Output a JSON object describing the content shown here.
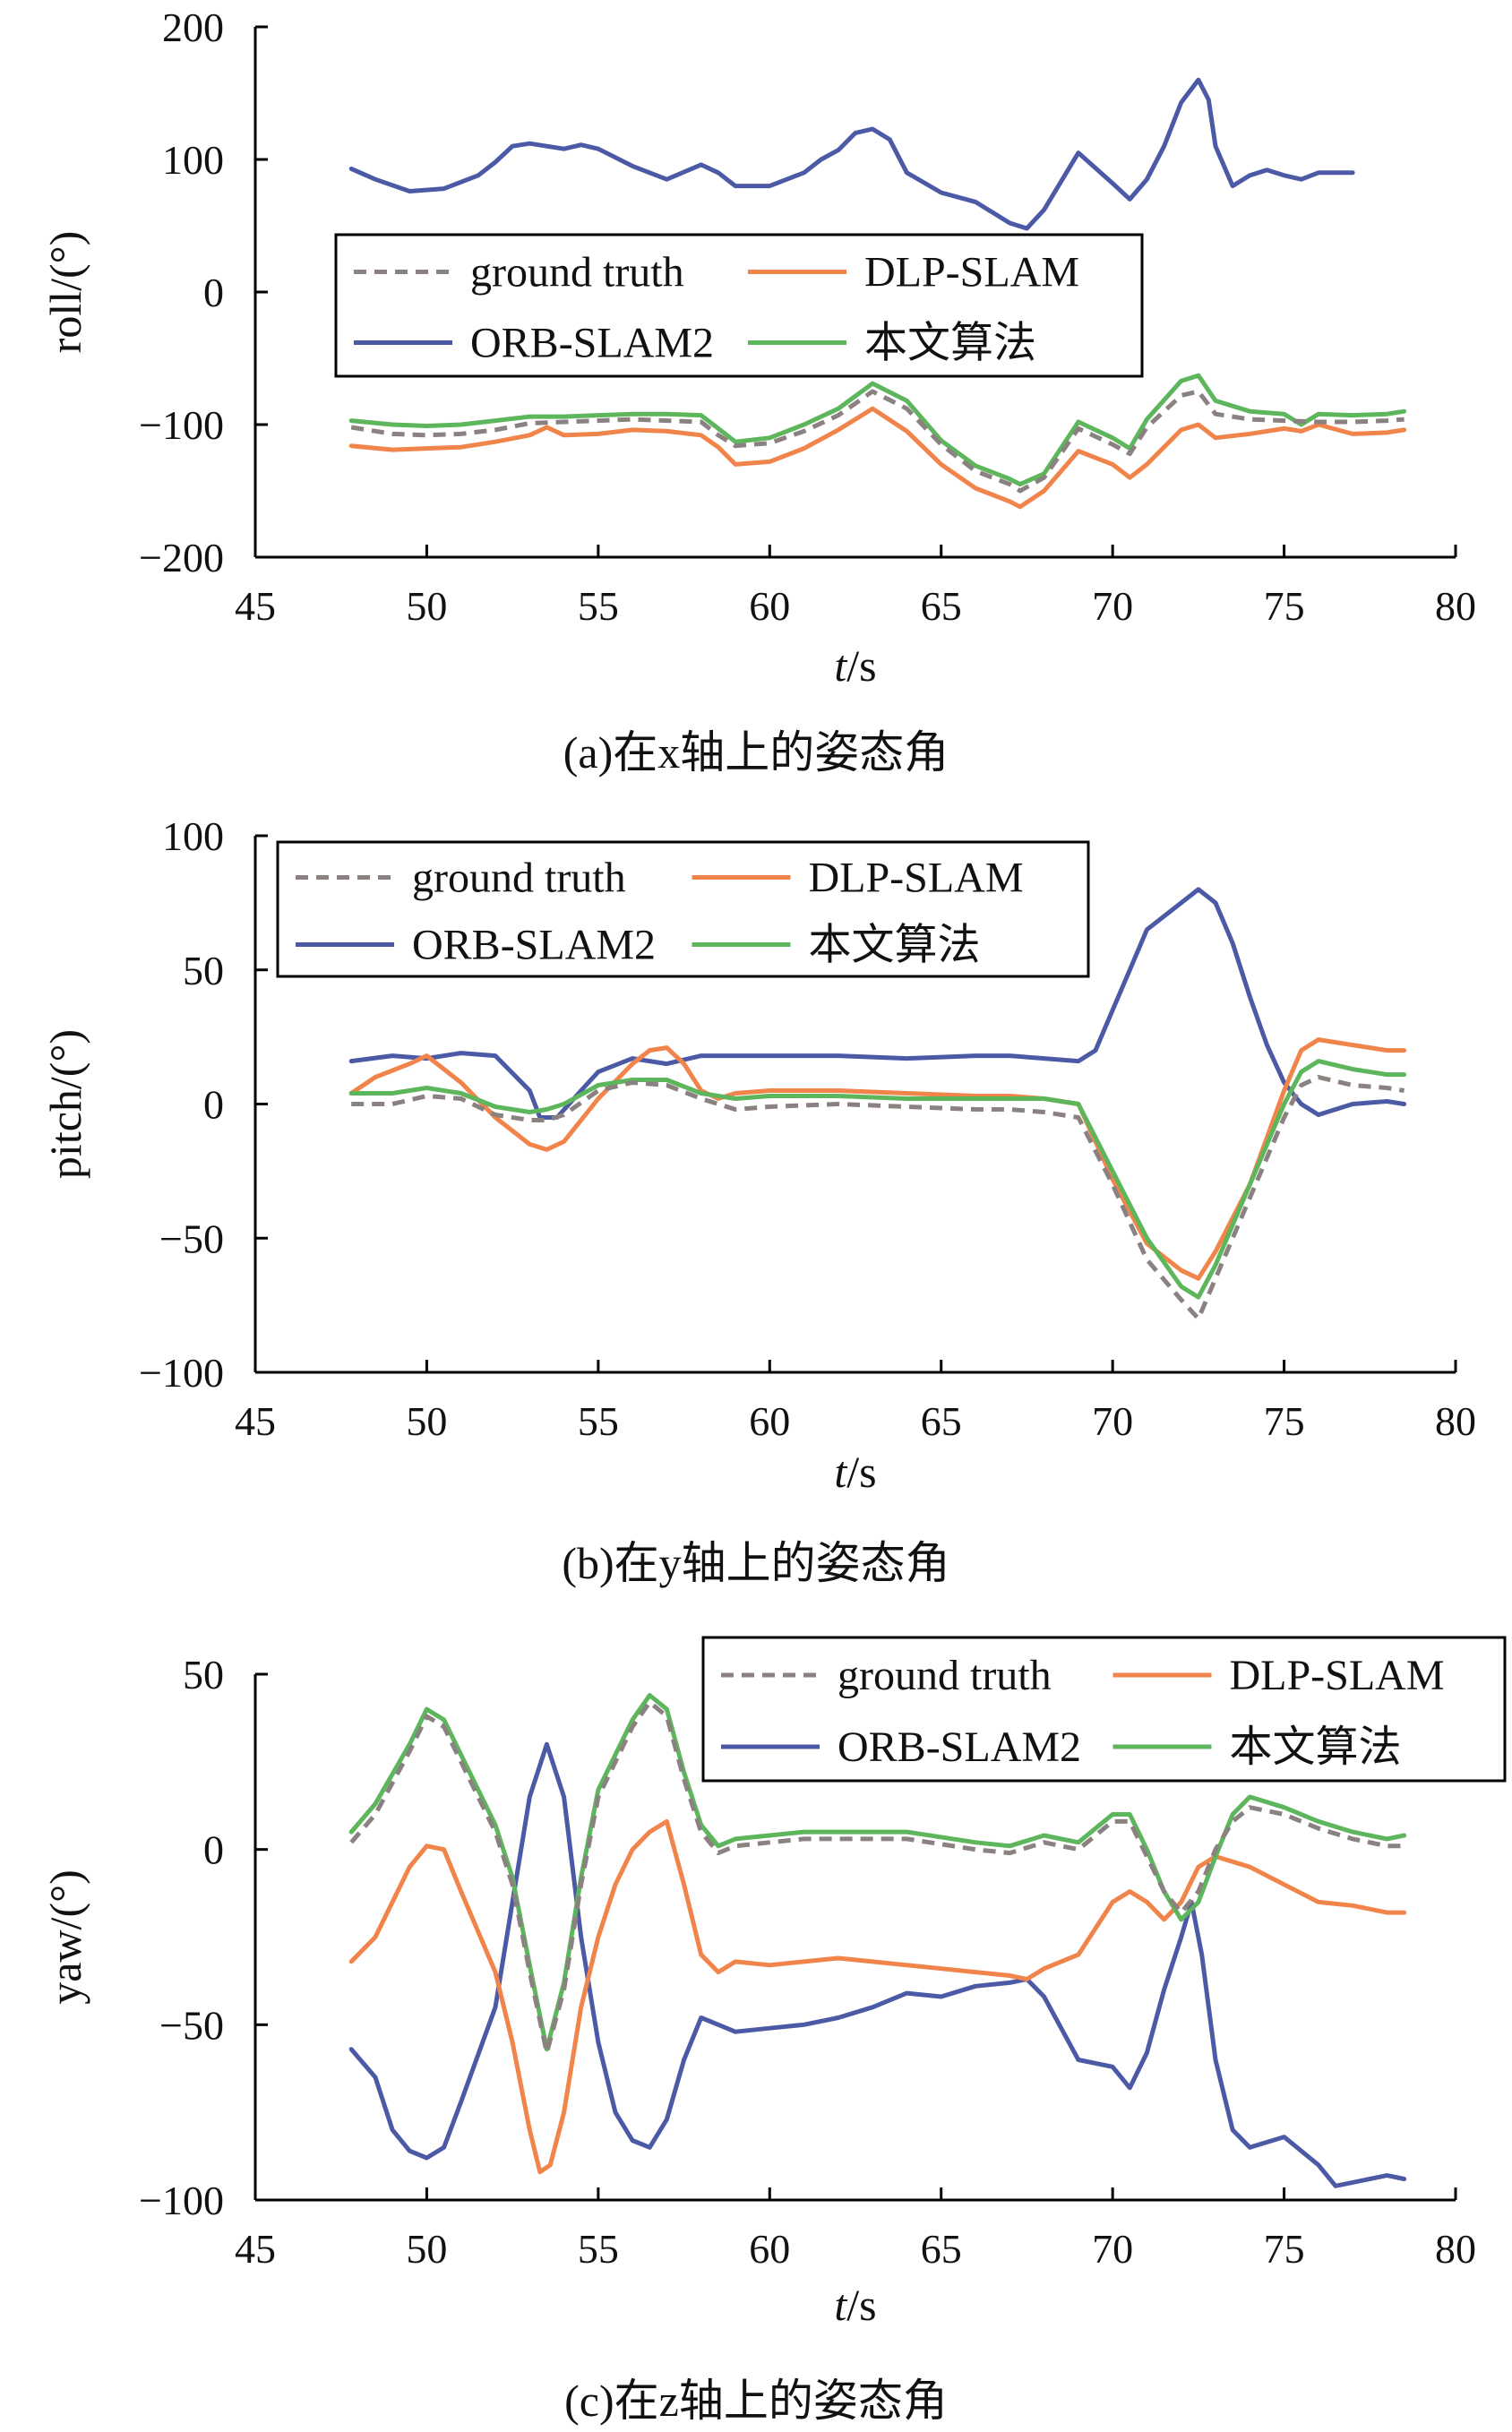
{
  "colors": {
    "ground_truth": "#8a8180",
    "orb_slam2": "#4c5aa6",
    "dlp_slam": "#f0844a",
    "proposed": "#5db55c"
  },
  "chart_data": [
    {
      "type": "line",
      "ylabel": "roll/(°)",
      "xlabel_italic": "t",
      "xlabel_unit": "/s",
      "caption": "(a)在x轴上的姿态角",
      "xlim": [
        45,
        80
      ],
      "ylim": [
        -200,
        200
      ],
      "xticks": [
        45,
        50,
        55,
        60,
        65,
        70,
        75,
        80
      ],
      "yticks": [
        -200,
        -100,
        0,
        100,
        200
      ],
      "legend_placement": "upper-middle",
      "series": [
        {
          "name": "ground truth",
          "key": "ground_truth",
          "dash": true,
          "x": [
            47.8,
            49,
            50,
            51,
            52,
            53,
            54,
            55,
            56,
            57,
            58,
            58.5,
            59,
            60,
            61,
            62,
            63,
            64,
            65,
            66,
            67,
            67.3,
            68,
            69,
            70,
            70.5,
            71,
            72,
            72.5,
            73,
            74,
            75,
            76,
            77,
            78,
            78.5
          ],
          "y": [
            -102,
            -107,
            -108,
            -107,
            -104,
            -99,
            -98,
            -97,
            -96,
            -97,
            -98,
            -108,
            -116,
            -114,
            -105,
            -93,
            -75,
            -88,
            -115,
            -135,
            -145,
            -150,
            -140,
            -103,
            -115,
            -122,
            -102,
            -78,
            -75,
            -92,
            -96,
            -97,
            -98,
            -98,
            -97,
            -96
          ]
        },
        {
          "name": "ORB-SLAM2",
          "key": "orb_slam2",
          "dash": false,
          "x": [
            47.8,
            48.5,
            49.5,
            50.5,
            51.5,
            52,
            52.5,
            53,
            53.5,
            54,
            54.5,
            55,
            56,
            57,
            58,
            58.5,
            59,
            60,
            61,
            61.5,
            62,
            62.5,
            63,
            63.5,
            64,
            65,
            66,
            67,
            67.5,
            68,
            69,
            70,
            70.5,
            71,
            71.5,
            72,
            72.5,
            72.8,
            73,
            73.5,
            74,
            74.5,
            75,
            75.5,
            76,
            77
          ],
          "y": [
            93,
            85,
            76,
            78,
            88,
            98,
            110,
            112,
            110,
            108,
            111,
            108,
            95,
            85,
            96,
            90,
            80,
            80,
            90,
            100,
            107,
            120,
            123,
            115,
            90,
            75,
            68,
            52,
            48,
            62,
            105,
            82,
            70,
            85,
            110,
            143,
            160,
            145,
            110,
            80,
            88,
            92,
            88,
            85,
            90,
            90
          ]
        },
        {
          "name": "DLP-SLAM",
          "key": "dlp_slam",
          "dash": false,
          "x": [
            47.8,
            49,
            50,
            51,
            52,
            53,
            53.5,
            54,
            55,
            56,
            57,
            58,
            58.5,
            59,
            60,
            61,
            62,
            63,
            64,
            65,
            66,
            67,
            67.3,
            68,
            69,
            70,
            70.5,
            71,
            72,
            72.5,
            73,
            74,
            75,
            75.5,
            76,
            77,
            78,
            78.5
          ],
          "y": [
            -116,
            -119,
            -118,
            -117,
            -113,
            -108,
            -102,
            -108,
            -107,
            -104,
            -105,
            -108,
            -117,
            -130,
            -128,
            -118,
            -104,
            -88,
            -105,
            -130,
            -148,
            -158,
            -162,
            -150,
            -120,
            -130,
            -140,
            -130,
            -104,
            -100,
            -110,
            -107,
            -103,
            -105,
            -100,
            -107,
            -106,
            -104
          ]
        },
        {
          "name": "本文算法",
          "key": "proposed",
          "dash": false,
          "x": [
            47.8,
            49,
            50,
            51,
            52,
            53,
            54,
            55,
            56,
            57,
            58,
            58.5,
            59,
            60,
            61,
            62,
            63,
            64,
            65,
            66,
            67,
            67.3,
            68,
            69,
            70,
            70.5,
            71,
            72,
            72.5,
            73,
            74,
            75,
            75.5,
            76,
            77,
            78,
            78.5
          ],
          "y": [
            -97,
            -100,
            -101,
            -100,
            -97,
            -94,
            -94,
            -93,
            -92,
            -92,
            -93,
            -103,
            -113,
            -110,
            -100,
            -88,
            -69,
            -82,
            -112,
            -131,
            -141,
            -145,
            -137,
            -98,
            -110,
            -118,
            -96,
            -67,
            -63,
            -82,
            -90,
            -92,
            -100,
            -92,
            -93,
            -92,
            -90
          ]
        }
      ]
    },
    {
      "type": "line",
      "ylabel": "pitch/(°)",
      "xlabel_italic": "t",
      "xlabel_unit": "/s",
      "caption": "(b)在y轴上的姿态角",
      "xlim": [
        45,
        80
      ],
      "ylim": [
        -100,
        100
      ],
      "xticks": [
        45,
        50,
        55,
        60,
        65,
        70,
        75,
        80
      ],
      "yticks": [
        -100,
        -50,
        0,
        50,
        100
      ],
      "legend_placement": "top-left",
      "series": [
        {
          "name": "ground truth",
          "key": "ground_truth",
          "dash": true,
          "x": [
            47.8,
            49,
            50,
            51,
            52,
            53,
            53.5,
            54,
            55,
            56,
            57,
            58,
            59,
            60,
            62,
            64,
            66,
            67,
            68,
            69,
            70,
            71,
            72,
            72.5,
            73,
            74,
            75,
            75.5,
            76,
            77,
            78,
            78.5
          ],
          "y": [
            0,
            0,
            3,
            2,
            -4,
            -6,
            -6,
            -4,
            5,
            8,
            7,
            2,
            -2,
            -1,
            0,
            -1,
            -2,
            -2,
            -3,
            -5,
            -30,
            -58,
            -73,
            -80,
            -65,
            -35,
            -5,
            7,
            10,
            7,
            6,
            5
          ]
        },
        {
          "name": "ORB-SLAM2",
          "key": "orb_slam2",
          "dash": false,
          "x": [
            47.8,
            49,
            50,
            51,
            52,
            53,
            53.3,
            53.8,
            54.5,
            55,
            56,
            57,
            58,
            60,
            62,
            64,
            66,
            67,
            68,
            69,
            69.5,
            70,
            70.5,
            71,
            72,
            72.5,
            73,
            73.5,
            74,
            74.5,
            75,
            75.5,
            76,
            77,
            78,
            78.5
          ],
          "y": [
            16,
            18,
            17,
            19,
            18,
            5,
            -5,
            -5,
            5,
            12,
            17,
            15,
            18,
            18,
            18,
            17,
            18,
            18,
            17,
            16,
            20,
            35,
            50,
            65,
            75,
            80,
            75,
            60,
            40,
            22,
            8,
            0,
            -4,
            0,
            1,
            0
          ]
        },
        {
          "name": "DLP-SLAM",
          "key": "dlp_slam",
          "dash": false,
          "x": [
            47.8,
            48.5,
            49.5,
            50,
            51,
            52,
            53,
            53.5,
            54,
            55,
            56,
            56.5,
            57,
            57.5,
            58,
            58.5,
            59,
            60,
            62,
            64,
            66,
            67,
            68,
            69,
            70,
            71,
            72,
            72.5,
            73,
            74,
            75,
            75.5,
            76,
            77,
            78,
            78.5
          ],
          "y": [
            4,
            10,
            15,
            18,
            8,
            -5,
            -15,
            -17,
            -14,
            2,
            15,
            20,
            21,
            15,
            5,
            2,
            4,
            5,
            5,
            4,
            3,
            3,
            2,
            0,
            -28,
            -52,
            -62,
            -65,
            -55,
            -30,
            5,
            20,
            24,
            22,
            20,
            20
          ]
        },
        {
          "name": "本文算法",
          "key": "proposed",
          "dash": false,
          "x": [
            47.8,
            49,
            50,
            51,
            52,
            53,
            53.5,
            54,
            55,
            56,
            57,
            58,
            59,
            60,
            62,
            64,
            66,
            67,
            68,
            69,
            70,
            71,
            72,
            72.5,
            73,
            74,
            75,
            75.5,
            76,
            77,
            78,
            78.5
          ],
          "y": [
            4,
            4,
            6,
            4,
            -1,
            -3,
            -2,
            0,
            7,
            9,
            9,
            4,
            2,
            3,
            3,
            2,
            2,
            2,
            2,
            0,
            -25,
            -50,
            -68,
            -72,
            -60,
            -30,
            0,
            12,
            16,
            13,
            11,
            11
          ]
        }
      ]
    },
    {
      "type": "line",
      "ylabel": "yaw/(°)",
      "xlabel_italic": "t",
      "xlabel_unit": "/s",
      "caption": "(c)在z轴上的姿态角",
      "xlim": [
        45,
        80
      ],
      "ylim": [
        -100,
        50
      ],
      "xticks": [
        45,
        50,
        55,
        60,
        65,
        70,
        75,
        80
      ],
      "yticks": [
        -100,
        -50,
        0,
        50
      ],
      "legend_placement": "top-right",
      "series": [
        {
          "name": "ground truth",
          "key": "ground_truth",
          "dash": true,
          "x": [
            47.8,
            48.5,
            49.5,
            50,
            50.5,
            51,
            52,
            52.5,
            53,
            53.5,
            54,
            54.5,
            55,
            56,
            56.5,
            57,
            57.5,
            58,
            58.5,
            59,
            60,
            61,
            62,
            64,
            66,
            67,
            68,
            69,
            70,
            70.5,
            71,
            71.5,
            72,
            72.5,
            73,
            73.5,
            74,
            75,
            76,
            77,
            78,
            78.5
          ],
          "y": [
            2,
            10,
            28,
            38,
            35,
            25,
            5,
            -10,
            -35,
            -58,
            -40,
            -10,
            15,
            35,
            42,
            38,
            20,
            5,
            -1,
            1,
            2,
            3,
            3,
            3,
            0,
            -1,
            2,
            0,
            8,
            8,
            -2,
            -12,
            -18,
            -12,
            0,
            8,
            12,
            10,
            6,
            3,
            1,
            1
          ]
        },
        {
          "name": "ORB-SLAM2",
          "key": "orb_slam2",
          "dash": false,
          "x": [
            47.8,
            48.5,
            49,
            49.5,
            50,
            50.5,
            51,
            52,
            52.5,
            53,
            53.5,
            54,
            54.5,
            55,
            55.5,
            56,
            56.5,
            57,
            57.5,
            58,
            58.5,
            59,
            60,
            61,
            62,
            63,
            64,
            65,
            66,
            67,
            67.5,
            68,
            69,
            70,
            70.5,
            71,
            71.5,
            72,
            72.3,
            72.6,
            73,
            73.5,
            74,
            75,
            76,
            76.5,
            77,
            78,
            78.5
          ],
          "y": [
            -57,
            -65,
            -80,
            -86,
            -88,
            -85,
            -72,
            -45,
            -15,
            15,
            30,
            15,
            -25,
            -55,
            -75,
            -83,
            -85,
            -77,
            -60,
            -48,
            -50,
            -52,
            -51,
            -50,
            -48,
            -45,
            -41,
            -42,
            -39,
            -38,
            -37,
            -42,
            -60,
            -62,
            -68,
            -58,
            -40,
            -25,
            -15,
            -30,
            -60,
            -80,
            -85,
            -82,
            -90,
            -96,
            -95,
            -93,
            -94
          ]
        },
        {
          "name": "DLP-SLAM",
          "key": "dlp_slam",
          "dash": false,
          "x": [
            47.8,
            48.5,
            49,
            49.5,
            50,
            50.5,
            51,
            52,
            52.5,
            53,
            53.3,
            53.6,
            54,
            54.5,
            55,
            55.5,
            56,
            56.5,
            57,
            57.5,
            58,
            58.5,
            59,
            60,
            61,
            62,
            63,
            64,
            65,
            66,
            67,
            67.5,
            68,
            69,
            70,
            70.5,
            71,
            71.5,
            72,
            72.5,
            73,
            74,
            75,
            76,
            77,
            78,
            78.5
          ],
          "y": [
            -32,
            -25,
            -15,
            -5,
            1,
            0,
            -12,
            -35,
            -55,
            -80,
            -92,
            -90,
            -75,
            -45,
            -25,
            -10,
            0,
            5,
            8,
            -10,
            -30,
            -35,
            -32,
            -33,
            -32,
            -31,
            -32,
            -33,
            -34,
            -35,
            -36,
            -37,
            -34,
            -30,
            -15,
            -12,
            -15,
            -20,
            -15,
            -5,
            -2,
            -5,
            -10,
            -15,
            -16,
            -18,
            -18
          ]
        },
        {
          "name": "本文算法",
          "key": "proposed",
          "dash": false,
          "x": [
            47.8,
            48.5,
            49.5,
            50,
            50.5,
            51,
            52,
            52.5,
            53,
            53.5,
            54,
            54.5,
            55,
            56,
            56.5,
            57,
            57.5,
            58,
            58.5,
            59,
            60,
            61,
            62,
            64,
            66,
            67,
            68,
            69,
            70,
            70.5,
            71,
            71.5,
            72,
            72.5,
            73,
            73.5,
            74,
            75,
            76,
            77,
            78,
            78.5
          ],
          "y": [
            5,
            13,
            30,
            40,
            37,
            27,
            7,
            -8,
            -33,
            -57,
            -38,
            -8,
            17,
            37,
            44,
            40,
            22,
            7,
            1,
            3,
            4,
            5,
            5,
            5,
            2,
            1,
            4,
            2,
            10,
            10,
            0,
            -12,
            -20,
            -15,
            -2,
            10,
            15,
            12,
            8,
            5,
            3,
            4
          ]
        }
      ]
    }
  ]
}
